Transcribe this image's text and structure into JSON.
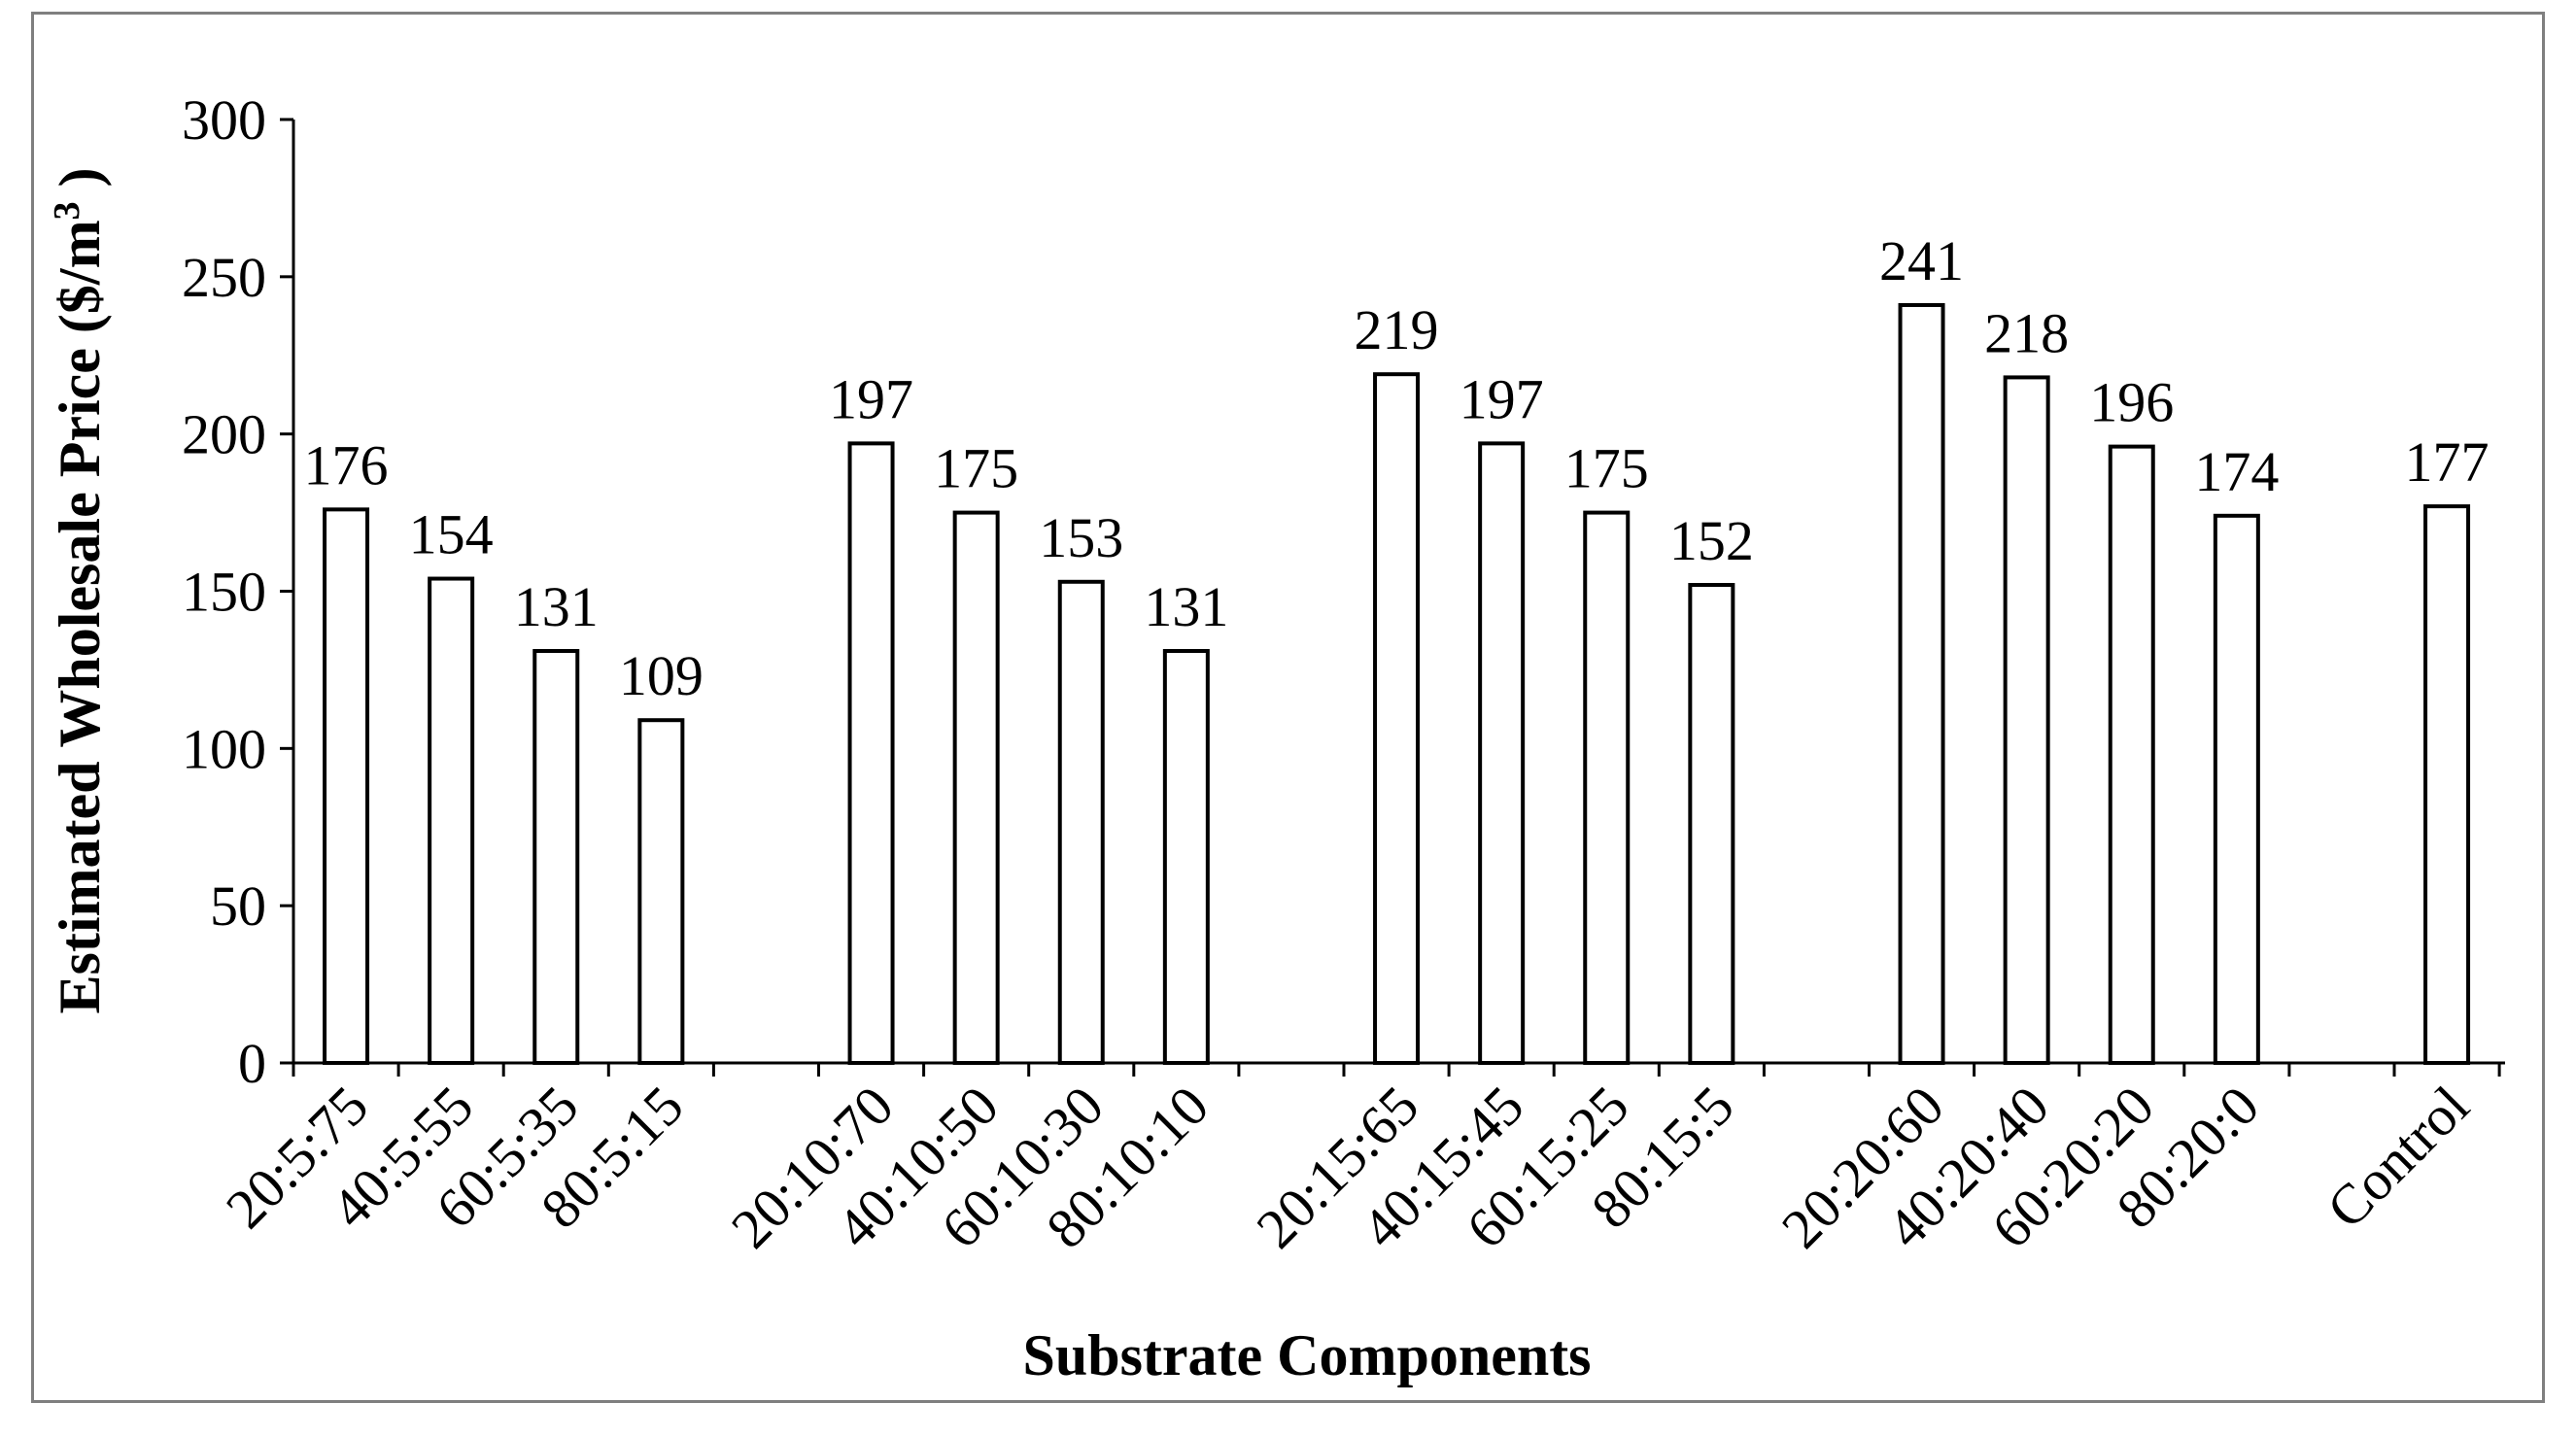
{
  "chart_data": {
    "type": "bar",
    "xlabel": "Substrate Components",
    "ylabel": "Estimated Wholesale Price ($/m",
    "ylabel_superscript": "3",
    "ylabel_suffix": " )",
    "ylim": [
      0,
      300
    ],
    "yticks": [
      0,
      50,
      100,
      150,
      200,
      250,
      300
    ],
    "grid": false,
    "legend": "none",
    "bar_color": "#ffffff",
    "bar_edge_color": "#000000",
    "categories": [
      "20:5:75",
      "40:5:55",
      "60:5:35",
      "80:5:15",
      "20:10:70",
      "40:10:50",
      "60:10:30",
      "80:10:10",
      "20:15:65",
      "40:15:45",
      "60:15:25",
      "80:15:5",
      "20:20:60",
      "40:20:40",
      "60:20:20",
      "80:20:0",
      "Control"
    ],
    "values": [
      176,
      154,
      131,
      109,
      197,
      175,
      153,
      131,
      219,
      197,
      175,
      152,
      241,
      218,
      196,
      174,
      177
    ],
    "data_labels": [
      "176",
      "154",
      "131",
      "109",
      "197",
      "175",
      "153",
      "131",
      "219",
      "197",
      "175",
      "152",
      "241",
      "218",
      "196",
      "174",
      "177"
    ]
  }
}
